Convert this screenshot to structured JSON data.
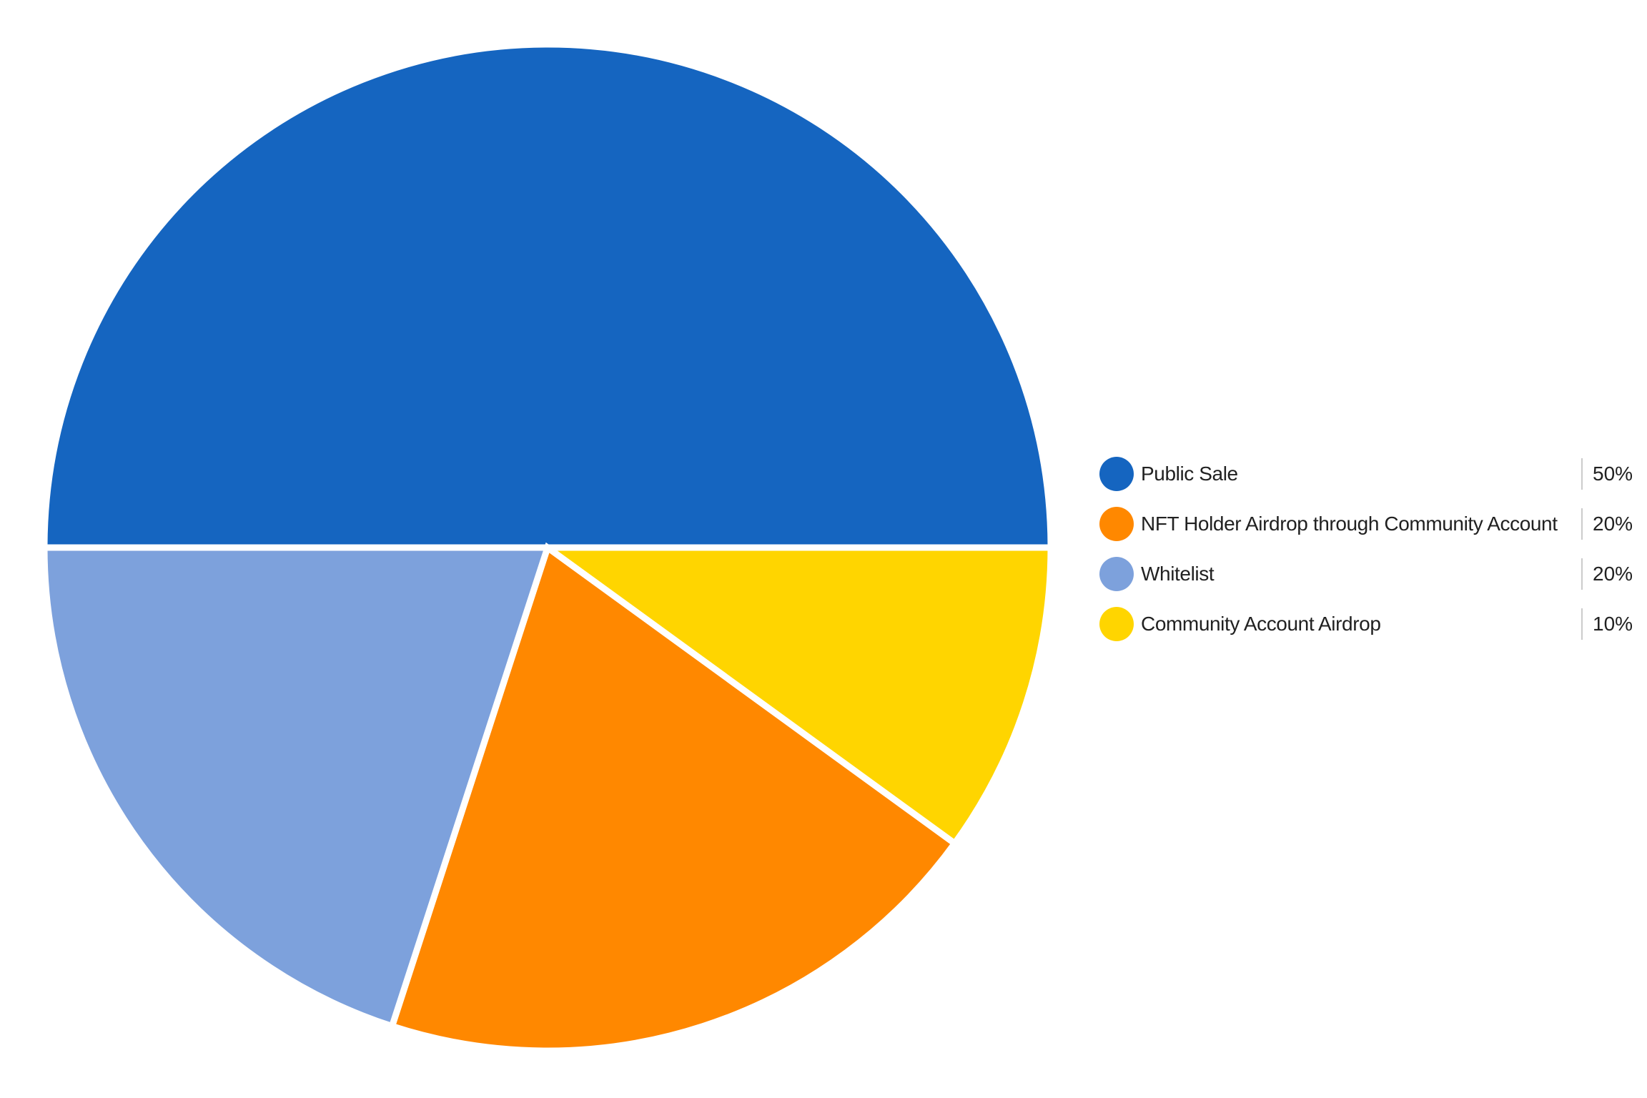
{
  "chart_data": {
    "type": "pie",
    "title": "",
    "legend_position": "right",
    "background_color": "#FFFFFF",
    "slice_border_color": "#FFFFFF",
    "legend_text_color": "#212121",
    "legend_divider_color": "#CBCBCB",
    "angle_convention": "degrees counterclockwise from east (3 o'clock)",
    "slices": [
      {
        "label": "Public Sale",
        "value": 50,
        "pct": "50%",
        "color": "#1565C0",
        "start_deg": 0,
        "end_deg": 180
      },
      {
        "label": "NFT Holder Airdrop through Community Account",
        "value": 20,
        "pct": "20%",
        "color": "#FF8800",
        "start_deg": 252,
        "end_deg": 324
      },
      {
        "label": "Whitelist",
        "value": 20,
        "pct": "20%",
        "color": "#7DA1DC",
        "start_deg": 180,
        "end_deg": 252
      },
      {
        "label": "Community Account Airdrop",
        "value": 10,
        "pct": "10%",
        "color": "#FFD500",
        "start_deg": 324,
        "end_deg": 360
      }
    ]
  }
}
